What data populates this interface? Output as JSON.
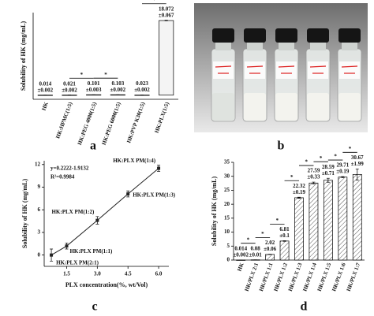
{
  "chart_data": [
    {
      "type": "bar",
      "panel_label": "a",
      "ylabel": "Solubility of HK (mg/mL)",
      "categories": [
        "HK",
        "HK:HPMC(1:5)",
        "HK:PEG 4000(1:5)",
        "HK:PEG 6000(1:5)",
        "HK:PVP K30(1:5)",
        "HK:PLX(1:5)"
      ],
      "values": [
        0.014,
        0.021,
        0.101,
        0.103,
        0.023,
        18.072
      ],
      "errors": [
        0.002,
        0.002,
        0.003,
        0.002,
        0.002,
        0.067
      ],
      "error_labels": [
        "±0.002",
        "±0.002",
        "±0.003",
        "±0.002",
        "±0.002",
        "±0.067"
      ],
      "significance": [
        null,
        null,
        "*",
        "*",
        null,
        "*"
      ],
      "color": "#f4f4f4",
      "hatch": false,
      "ylim": [
        -1,
        20
      ]
    },
    {
      "type": "scatter",
      "panel_label": "c",
      "xlabel": "PLX concentration(%, wt/Vol)",
      "ylabel": "Solubility of HK (mg/mL)",
      "x": [
        0.75,
        1.5,
        3,
        4.5,
        6
      ],
      "values": [
        0,
        1.2,
        4.6,
        8.1,
        11.5
      ],
      "errors": [
        0.8,
        0.4,
        0.5,
        0.4,
        0.4
      ],
      "point_labels": [
        "HK:PLX PM(2:1)",
        "HK:PLX PM(1:1)",
        "HK:PLX PM(1:2)",
        "HK:PLX PM(1:3)",
        "HK:PLX PM(1:4)"
      ],
      "annotations": [
        "y=0.2222-1.9132",
        "R²=0.9984"
      ],
      "color": "#222222",
      "xlim": [
        0.4,
        6.5
      ],
      "ylim": [
        -1.5,
        12.5
      ],
      "xticks": [
        1.5,
        {
          "value": 3,
          "label": "3.0"
        },
        4.5,
        {
          "value": 6,
          "label": "6.0"
        }
      ],
      "yticks": [
        0,
        3,
        6,
        9,
        12
      ]
    },
    {
      "type": "bar",
      "panel_label": "d",
      "ylabel": "Solubility of HK (mg/mL)",
      "categories": [
        "HK",
        "HK/PLX 2:1",
        "HK/PLX 1:1",
        "HK/PLX 1:2",
        "HK/PLX 1:3",
        "HK/PLX 1:4",
        "HK/PLX 1:5",
        "HK/PLX 1:6",
        "HK/PLX 1:7"
      ],
      "values": [
        0.014,
        0.08,
        2.02,
        6.81,
        22.32,
        27.59,
        28.59,
        29.71,
        30.67
      ],
      "errors": [
        0.002,
        0.01,
        0.06,
        0.1,
        0.19,
        0.33,
        0.71,
        0.19,
        1.99
      ],
      "error_labels": [
        "±0.002",
        "±0.01",
        "±0.06",
        "±0.1",
        "±0.19",
        "±0.33",
        "±0.71",
        "±0.19",
        "±1.99"
      ],
      "significance": [
        null,
        "*",
        "*",
        "*",
        "*",
        "*",
        "*",
        "*",
        "*"
      ],
      "color": "#ffffff",
      "hatch": true,
      "ylim": [
        0,
        35
      ],
      "yticks": [
        0,
        5,
        10,
        15,
        20,
        25,
        30,
        35
      ]
    }
  ],
  "image_panel": {
    "panel_label": "b"
  }
}
